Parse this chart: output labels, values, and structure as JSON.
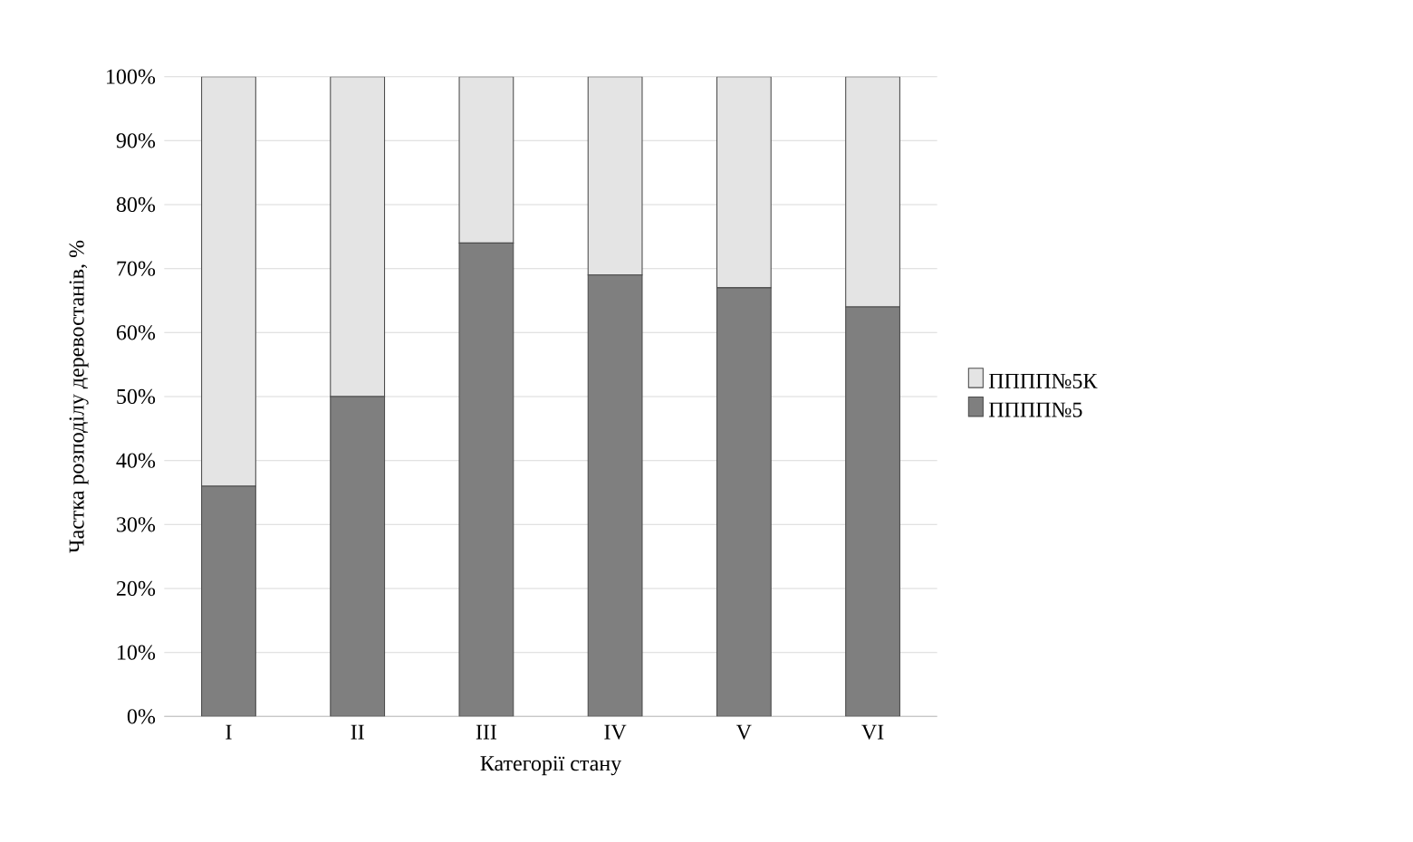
{
  "chart_data": {
    "type": "bar",
    "stacked": true,
    "xlabel": "Категорії стану",
    "ylabel": "Частка розподілу деревостанів, %",
    "categories": [
      "I",
      "II",
      "III",
      "IV",
      "V",
      "VI"
    ],
    "series": [
      {
        "name": "ПППП№5",
        "color": "#7f7f7f",
        "values": [
          36,
          50,
          74,
          69,
          67,
          64
        ]
      },
      {
        "name": "ПППП№5К",
        "color": "#e4e4e4",
        "values": [
          64,
          50,
          26,
          31,
          33,
          36
        ]
      }
    ],
    "ylim": [
      0,
      100
    ],
    "yticks": [
      {
        "value": 0,
        "label": "0%"
      },
      {
        "value": 10,
        "label": "10%"
      },
      {
        "value": 20,
        "label": "20%"
      },
      {
        "value": 30,
        "label": "30%"
      },
      {
        "value": 40,
        "label": "40%"
      },
      {
        "value": 50,
        "label": "50%"
      },
      {
        "value": 60,
        "label": "60%"
      },
      {
        "value": 70,
        "label": "70%"
      },
      {
        "value": 80,
        "label": "80%"
      },
      {
        "value": 90,
        "label": "90%"
      },
      {
        "value": 100,
        "label": "100%"
      }
    ],
    "grid": "y",
    "legend": "right"
  }
}
